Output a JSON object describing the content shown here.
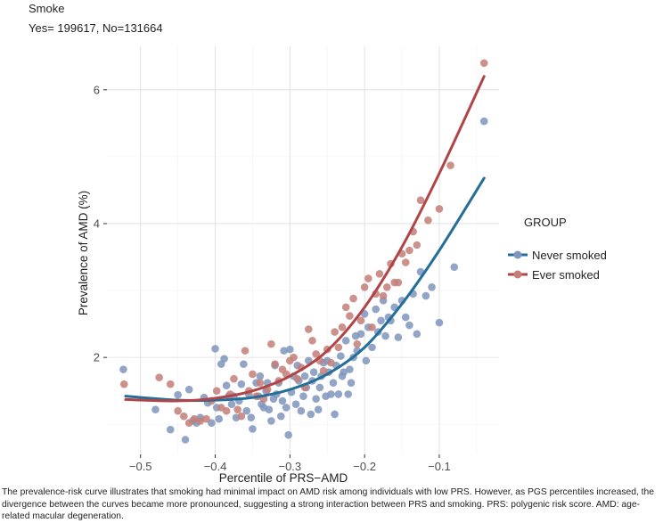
{
  "chart_data": {
    "type": "scatter",
    "title": "Smoke",
    "subtitle": "Yes= 199617, No=131664",
    "xlabel": "Percentile of PRS−AMD",
    "ylabel": "Prevalence of AMD (%)",
    "xlim": [
      -0.545,
      -0.02
    ],
    "ylim": [
      0.55,
      6.65
    ],
    "x_ticks": [
      -0.5,
      -0.4,
      -0.3,
      -0.2,
      -0.1
    ],
    "x_tick_labels": [
      "−0.5",
      "−0.4",
      "−0.3",
      "−0.2",
      "−0.1"
    ],
    "y_ticks": [
      2,
      4,
      6
    ],
    "y_tick_labels": [
      "2",
      "4",
      "6"
    ],
    "grid": true,
    "legend_position": "right",
    "legend_title": "GROUP",
    "series": [
      {
        "name": "Never smoked",
        "color": "#246e98",
        "point_color": "#7f95bd",
        "fit_curve": {
          "x": [
            -0.52,
            -0.45,
            -0.4,
            -0.35,
            -0.3,
            -0.25,
            -0.2,
            -0.15,
            -0.1,
            -0.04
          ],
          "y": [
            1.42,
            1.36,
            1.36,
            1.4,
            1.52,
            1.75,
            2.15,
            2.8,
            3.6,
            4.68
          ]
        },
        "points": [
          [
            -0.523,
            1.82
          ],
          [
            -0.48,
            1.22
          ],
          [
            -0.46,
            0.92
          ],
          [
            -0.45,
            1.44
          ],
          [
            -0.44,
            0.77
          ],
          [
            -0.435,
            1.52
          ],
          [
            -0.43,
            1.05
          ],
          [
            -0.425,
            1.02
          ],
          [
            -0.42,
            1.1
          ],
          [
            -0.415,
            1.4
          ],
          [
            -0.41,
            1.32
          ],
          [
            -0.405,
            1.02
          ],
          [
            -0.4,
            2.13
          ],
          [
            -0.398,
            1.25
          ],
          [
            -0.395,
            1.08
          ],
          [
            -0.392,
            1.9
          ],
          [
            -0.388,
            1.98
          ],
          [
            -0.385,
            1.58
          ],
          [
            -0.382,
            1.42
          ],
          [
            -0.378,
            1.3
          ],
          [
            -0.375,
            1.42
          ],
          [
            -0.372,
            1.1
          ],
          [
            -0.368,
            1.35
          ],
          [
            -0.365,
            1.6
          ],
          [
            -0.362,
            1.9
          ],
          [
            -0.358,
            1.2
          ],
          [
            -0.355,
            1.45
          ],
          [
            -0.352,
            1.1
          ],
          [
            -0.35,
            0.93
          ],
          [
            -0.345,
            1.62
          ],
          [
            -0.342,
            1.42
          ],
          [
            -0.34,
            1.72
          ],
          [
            -0.338,
            1.3
          ],
          [
            -0.335,
            1.25
          ],
          [
            -0.332,
            1.5
          ],
          [
            -0.33,
            1.62
          ],
          [
            -0.328,
            1.22
          ],
          [
            -0.325,
            1.05
          ],
          [
            -0.322,
            1.38
          ],
          [
            -0.32,
            1.88
          ],
          [
            -0.318,
            1.45
          ],
          [
            -0.315,
            1.62
          ],
          [
            -0.312,
            1.12
          ],
          [
            -0.31,
            1.35
          ],
          [
            -0.308,
            2.1
          ],
          [
            -0.305,
            1.25
          ],
          [
            -0.302,
            0.84
          ],
          [
            -0.3,
            2.12
          ],
          [
            -0.298,
            1.48
          ],
          [
            -0.295,
            1.72
          ],
          [
            -0.292,
            1.3
          ],
          [
            -0.29,
            1.88
          ],
          [
            -0.288,
            1.65
          ],
          [
            -0.285,
            1.2
          ],
          [
            -0.282,
            1.42
          ],
          [
            -0.28,
            1.72
          ],
          [
            -0.278,
            1.55
          ],
          [
            -0.275,
            1.95
          ],
          [
            -0.272,
            1.15
          ],
          [
            -0.27,
            1.65
          ],
          [
            -0.268,
            1.78
          ],
          [
            -0.265,
            1.38
          ],
          [
            -0.262,
            1.22
          ],
          [
            -0.26,
            1.55
          ],
          [
            -0.258,
            1.72
          ],
          [
            -0.255,
            1.92
          ],
          [
            -0.252,
            1.42
          ],
          [
            -0.25,
            1.95
          ],
          [
            -0.248,
            1.78
          ],
          [
            -0.245,
            1.45
          ],
          [
            -0.242,
            1.62
          ],
          [
            -0.24,
            1.15
          ],
          [
            -0.238,
            1.88
          ],
          [
            -0.235,
            1.45
          ],
          [
            -0.232,
            2.02
          ],
          [
            -0.23,
            1.72
          ],
          [
            -0.228,
            1.78
          ],
          [
            -0.225,
            2.25
          ],
          [
            -0.222,
            1.45
          ],
          [
            -0.22,
            1.82
          ],
          [
            -0.218,
            1.62
          ],
          [
            -0.215,
            2.0
          ],
          [
            -0.212,
            2.32
          ],
          [
            -0.21,
            2.1
          ],
          [
            -0.205,
            2.35
          ],
          [
            -0.2,
            2.65
          ],
          [
            -0.198,
            1.95
          ],
          [
            -0.195,
            2.45
          ],
          [
            -0.19,
            2.15
          ],
          [
            -0.185,
            2.72
          ],
          [
            -0.182,
            2.38
          ],
          [
            -0.178,
            2.55
          ],
          [
            -0.175,
            2.85
          ],
          [
            -0.172,
            2.32
          ],
          [
            -0.168,
            2.6
          ],
          [
            -0.165,
            2.55
          ],
          [
            -0.16,
            2.75
          ],
          [
            -0.155,
            2.3
          ],
          [
            -0.15,
            2.85
          ],
          [
            -0.145,
            2.6
          ],
          [
            -0.14,
            2.48
          ],
          [
            -0.135,
            2.95
          ],
          [
            -0.13,
            2.35
          ],
          [
            -0.125,
            3.28
          ],
          [
            -0.118,
            2.92
          ],
          [
            -0.11,
            3.05
          ],
          [
            -0.1,
            2.52
          ],
          [
            -0.08,
            3.35
          ],
          [
            -0.04,
            5.53
          ]
        ]
      },
      {
        "name": "Ever smoked",
        "color": "#b04447",
        "point_color": "#c47e78",
        "fit_curve": {
          "x": [
            -0.52,
            -0.45,
            -0.4,
            -0.35,
            -0.3,
            -0.25,
            -0.2,
            -0.15,
            -0.1,
            -0.04
          ],
          "y": [
            1.37,
            1.35,
            1.39,
            1.5,
            1.72,
            2.1,
            2.75,
            3.65,
            4.75,
            6.2
          ]
        },
        "points": [
          [
            -0.522,
            1.6
          ],
          [
            -0.475,
            1.7
          ],
          [
            -0.46,
            1.6
          ],
          [
            -0.45,
            1.2
          ],
          [
            -0.442,
            1.12
          ],
          [
            -0.435,
            1.02
          ],
          [
            -0.428,
            1.08
          ],
          [
            -0.42,
            1.05
          ],
          [
            -0.412,
            1.08
          ],
          [
            -0.405,
            1.35
          ],
          [
            -0.398,
            1.5
          ],
          [
            -0.392,
            1.25
          ],
          [
            -0.385,
            1.2
          ],
          [
            -0.38,
            1.45
          ],
          [
            -0.375,
            1.68
          ],
          [
            -0.37,
            1.22
          ],
          [
            -0.365,
            1.12
          ],
          [
            -0.36,
            2.1
          ],
          [
            -0.355,
            1.5
          ],
          [
            -0.35,
            1.75
          ],
          [
            -0.345,
            1.42
          ],
          [
            -0.34,
            1.62
          ],
          [
            -0.335,
            1.38
          ],
          [
            -0.33,
            1.52
          ],
          [
            -0.325,
            2.2
          ],
          [
            -0.32,
            1.9
          ],
          [
            -0.315,
            1.65
          ],
          [
            -0.31,
            1.82
          ],
          [
            -0.305,
            1.75
          ],
          [
            -0.3,
            1.95
          ],
          [
            -0.295,
            2.0
          ],
          [
            -0.29,
            1.68
          ],
          [
            -0.285,
            1.85
          ],
          [
            -0.28,
            1.55
          ],
          [
            -0.275,
            2.42
          ],
          [
            -0.27,
            2.25
          ],
          [
            -0.265,
            2.05
          ],
          [
            -0.26,
            1.95
          ],
          [
            -0.255,
            1.8
          ],
          [
            -0.25,
            2.12
          ],
          [
            -0.245,
            1.92
          ],
          [
            -0.24,
            2.38
          ],
          [
            -0.235,
            2.15
          ],
          [
            -0.23,
            2.45
          ],
          [
            -0.225,
            2.75
          ],
          [
            -0.22,
            2.62
          ],
          [
            -0.215,
            2.88
          ],
          [
            -0.21,
            2.2
          ],
          [
            -0.205,
            2.55
          ],
          [
            -0.2,
            3.05
          ],
          [
            -0.195,
            3.18
          ],
          [
            -0.19,
            2.45
          ],
          [
            -0.185,
            2.95
          ],
          [
            -0.18,
            3.25
          ],
          [
            -0.175,
            2.92
          ],
          [
            -0.17,
            3.05
          ],
          [
            -0.165,
            3.4
          ],
          [
            -0.16,
            3.12
          ],
          [
            -0.155,
            3.12
          ],
          [
            -0.15,
            3.55
          ],
          [
            -0.145,
            3.42
          ],
          [
            -0.14,
            3.6
          ],
          [
            -0.135,
            3.88
          ],
          [
            -0.13,
            3.68
          ],
          [
            -0.125,
            4.35
          ],
          [
            -0.115,
            4.05
          ],
          [
            -0.1,
            4.22
          ],
          [
            -0.085,
            4.87
          ],
          [
            -0.04,
            6.4
          ]
        ]
      }
    ]
  },
  "caption": "The prevalence-risk curve illustrates that smoking had minimal impact on AMD risk among individuals with low PRS. However, as PGS percentiles increased, the divergence between the curves became more pronounced, suggesting a strong interaction between PRS and smoking. PRS: polygenic risk score. AMD: age-related macular degeneration."
}
